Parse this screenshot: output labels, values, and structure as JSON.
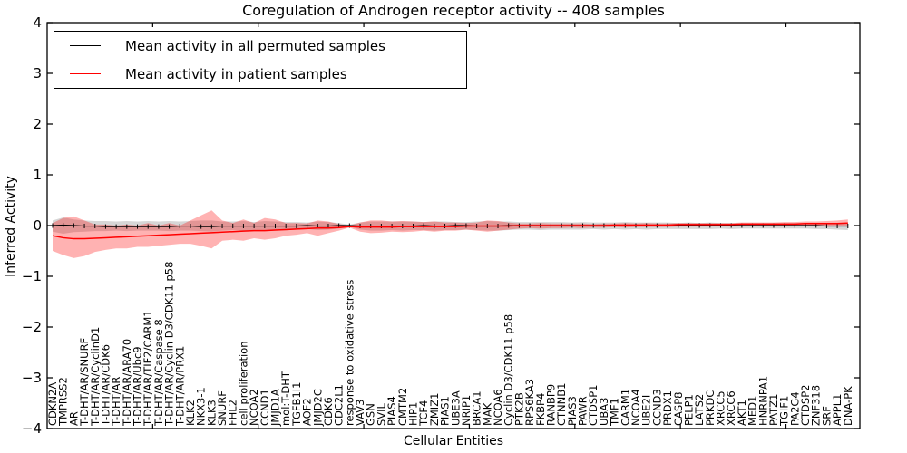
{
  "title": "Coregulation of Androgen receptor activity -- 408 samples",
  "legend": {
    "entries": [
      {
        "label": "Mean activity in all permuted samples",
        "color": "#000000"
      },
      {
        "label": "Mean activity in patient samples",
        "color": "#ff0000"
      }
    ]
  },
  "axes": {
    "xlabel": "Cellular Entities",
    "ylabel": "Inferred Activity",
    "ylim": [
      -4,
      4
    ],
    "ytick_values": [
      4,
      3,
      2,
      1,
      0,
      -1,
      -2,
      -3,
      -4
    ],
    "ytick_labels": [
      "4",
      "3",
      "2",
      "1",
      "0",
      "−1",
      "−2",
      "−3",
      "−4"
    ]
  },
  "colors": {
    "line_permuted": "#000000",
    "line_patient": "#ff0000",
    "band_permuted": "rgba(0,0,0,0.16)",
    "band_patient": "rgba(255,0,0,0.30)",
    "frame": "#000000",
    "background": "#ffffff"
  },
  "chart_data": {
    "type": "line",
    "title": "Coregulation of Androgen receptor activity -- 408 samples",
    "xlabel": "Cellular Entities",
    "ylabel": "Inferred Activity",
    "ylim": [
      -4,
      4
    ],
    "grid": false,
    "legend_position": "upper left",
    "categories": [
      "CDKN2A",
      "TMPRSS2",
      "AR",
      "T-DHT/AR/SNURF",
      "T-DHT/AR/CyclinD1",
      "T-DHT/AR/CDK6",
      "T-DHT/AR",
      "T-DHT/AR/ARA70",
      "T-DHT/AR/Ubc9",
      "T-DHT/AR/TIF2/CARM1",
      "T-DHT/AR/Caspase 8",
      "T-DHT/AR/Cyclin D3/CDK11 p58",
      "T-DHT/AR/PRX1",
      "KLK2",
      "NKX3-1",
      "KLK3",
      "SNURF",
      "FHL2",
      "cell proliferation",
      "NCOA2",
      "CCND1",
      "JMJD1A",
      "mol:T-DHT",
      "TGFB1I1",
      "AOF2",
      "JMJD2C",
      "CDK6",
      "CDC2L1",
      "response to oxidative stress",
      "VAV3",
      "GSN",
      "SVIL",
      "PIAS4",
      "CMTM2",
      "HIP1",
      "TCF4",
      "ZMIZ1",
      "PIAS1",
      "UBE3A",
      "NRIP1",
      "BRCA1",
      "MAK",
      "NCOA6",
      "Cyclin D3/CDK11 p58",
      "PTK2B",
      "RPS6KA3",
      "FKBP4",
      "RANBP9",
      "CTNNB1",
      "PIAS3",
      "PAWR",
      "CTDSP1",
      "UBA3",
      "TMF1",
      "CARM1",
      "NCOA4",
      "UBE2I",
      "CCND3",
      "PRDX1",
      "CASP8",
      "PELP1",
      "LATS2",
      "PRKDC",
      "XRCC5",
      "XRCC6",
      "AKT1",
      "MED1",
      "HNRNPA1",
      "PATZ1",
      "TGIF1",
      "PA2G4",
      "CTDSP2",
      "ZNF318",
      "SRF",
      "APPL1",
      "DNA-PK"
    ],
    "series": [
      {
        "name": "Mean activity in all permuted samples",
        "color": "#000000",
        "marker": "tick",
        "values": [
          0.0,
          0.01,
          0.0,
          -0.01,
          -0.01,
          -0.02,
          -0.02,
          -0.02,
          -0.02,
          -0.02,
          -0.02,
          -0.02,
          -0.01,
          -0.01,
          -0.02,
          -0.02,
          -0.01,
          -0.01,
          -0.01,
          -0.01,
          -0.01,
          -0.01,
          -0.01,
          -0.01,
          0.0,
          -0.01,
          -0.01,
          0.0,
          0.0,
          -0.01,
          -0.01,
          -0.01,
          -0.01,
          -0.01,
          -0.01,
          0.0,
          -0.01,
          -0.01,
          0.0,
          0.0,
          -0.01,
          -0.01,
          -0.01,
          0.0,
          0.0,
          0.0,
          0.0,
          0.0,
          0.0,
          0.0,
          0.0,
          0.0,
          0.0,
          0.0,
          0.0,
          0.0,
          0.0,
          0.0,
          0.0,
          0.0,
          0.0,
          0.0,
          0.0,
          0.0,
          0.0,
          0.0,
          0.0,
          0.0,
          0.0,
          0.0,
          0.0,
          0.0,
          0.0,
          -0.01,
          -0.01,
          -0.01
        ]
      },
      {
        "name": "Mean activity in patient samples",
        "color": "#ff0000",
        "marker": "none",
        "values": [
          -0.2,
          -0.24,
          -0.26,
          -0.26,
          -0.25,
          -0.24,
          -0.23,
          -0.22,
          -0.21,
          -0.2,
          -0.19,
          -0.18,
          -0.17,
          -0.16,
          -0.15,
          -0.14,
          -0.13,
          -0.12,
          -0.11,
          -0.1,
          -0.1,
          -0.09,
          -0.08,
          -0.07,
          -0.06,
          -0.05,
          -0.05,
          -0.04,
          -0.02,
          -0.03,
          -0.03,
          -0.03,
          -0.03,
          -0.02,
          -0.02,
          -0.02,
          -0.02,
          -0.02,
          -0.02,
          -0.01,
          -0.01,
          -0.01,
          -0.01,
          -0.01,
          0.0,
          0.0,
          0.0,
          0.0,
          0.0,
          0.0,
          0.0,
          0.0,
          0.0,
          0.01,
          0.01,
          0.01,
          0.01,
          0.01,
          0.01,
          0.02,
          0.02,
          0.02,
          0.02,
          0.02,
          0.02,
          0.03,
          0.03,
          0.03,
          0.03,
          0.03,
          0.03,
          0.04,
          0.04,
          0.04,
          0.04,
          0.05
        ]
      }
    ],
    "bands": [
      {
        "name": "permuted samples spread",
        "color": "rgba(0,0,0,0.16)",
        "lower": [
          -0.12,
          -0.16,
          -0.13,
          -0.12,
          -0.11,
          -0.11,
          -0.1,
          -0.11,
          -0.1,
          -0.1,
          -0.1,
          -0.11,
          -0.1,
          -0.1,
          -0.11,
          -0.12,
          -0.1,
          -0.09,
          -0.1,
          -0.09,
          -0.1,
          -0.09,
          -0.08,
          -0.08,
          -0.07,
          -0.09,
          -0.08,
          -0.06,
          -0.02,
          -0.08,
          -0.1,
          -0.1,
          -0.09,
          -0.1,
          -0.09,
          -0.09,
          -0.1,
          -0.09,
          -0.09,
          -0.08,
          -0.09,
          -0.1,
          -0.1,
          -0.09,
          -0.08,
          -0.08,
          -0.09,
          -0.08,
          -0.08,
          -0.08,
          -0.08,
          -0.07,
          -0.08,
          -0.07,
          -0.08,
          -0.07,
          -0.08,
          -0.07,
          -0.07,
          -0.07,
          -0.07,
          -0.07,
          -0.07,
          -0.06,
          -0.07,
          -0.06,
          -0.06,
          -0.06,
          -0.06,
          -0.06,
          -0.06,
          -0.06,
          -0.07,
          -0.07,
          -0.08,
          -0.09
        ],
        "upper": [
          0.1,
          0.16,
          0.12,
          0.1,
          0.09,
          0.09,
          0.08,
          0.09,
          0.08,
          0.09,
          0.08,
          0.09,
          0.08,
          0.09,
          0.1,
          0.1,
          0.08,
          0.08,
          0.09,
          0.07,
          0.09,
          0.08,
          0.07,
          0.07,
          0.06,
          0.08,
          0.07,
          0.05,
          0.02,
          0.06,
          0.08,
          0.08,
          0.08,
          0.08,
          0.08,
          0.07,
          0.08,
          0.08,
          0.07,
          0.07,
          0.08,
          0.09,
          0.08,
          0.08,
          0.07,
          0.07,
          0.07,
          0.07,
          0.07,
          0.06,
          0.07,
          0.06,
          0.06,
          0.06,
          0.07,
          0.06,
          0.06,
          0.06,
          0.06,
          0.05,
          0.06,
          0.05,
          0.06,
          0.05,
          0.05,
          0.05,
          0.05,
          0.05,
          0.05,
          0.05,
          0.05,
          0.05,
          0.05,
          0.05,
          0.05,
          0.06
        ]
      },
      {
        "name": "patient samples spread",
        "color": "rgba(255,0,0,0.30)",
        "lower": [
          -0.5,
          -0.58,
          -0.64,
          -0.6,
          -0.52,
          -0.48,
          -0.45,
          -0.45,
          -0.42,
          -0.42,
          -0.4,
          -0.38,
          -0.36,
          -0.36,
          -0.4,
          -0.45,
          -0.3,
          -0.28,
          -0.3,
          -0.25,
          -0.28,
          -0.25,
          -0.2,
          -0.18,
          -0.15,
          -0.2,
          -0.15,
          -0.1,
          -0.04,
          -0.12,
          -0.15,
          -0.14,
          -0.12,
          -0.13,
          -0.12,
          -0.1,
          -0.12,
          -0.1,
          -0.1,
          -0.08,
          -0.1,
          -0.12,
          -0.1,
          -0.08,
          -0.06,
          -0.05,
          -0.06,
          -0.05,
          -0.05,
          -0.04,
          -0.05,
          -0.04,
          -0.04,
          -0.03,
          -0.04,
          -0.03,
          -0.03,
          -0.03,
          -0.03,
          -0.02,
          -0.02,
          -0.02,
          -0.02,
          -0.01,
          -0.01,
          0.0,
          0.0,
          0.0,
          0.0,
          0.0,
          0.0,
          0.01,
          0.01,
          0.0,
          0.0,
          -0.02
        ],
        "upper": [
          0.05,
          0.15,
          0.18,
          0.1,
          0.02,
          0.02,
          0.0,
          0.02,
          0.0,
          0.05,
          0.0,
          0.05,
          0.0,
          0.1,
          0.2,
          0.3,
          0.1,
          0.05,
          0.12,
          0.05,
          0.15,
          0.12,
          0.05,
          0.05,
          0.04,
          0.1,
          0.08,
          0.03,
          0.0,
          0.06,
          0.1,
          0.1,
          0.08,
          0.09,
          0.08,
          0.07,
          0.08,
          0.06,
          0.06,
          0.05,
          0.06,
          0.1,
          0.09,
          0.06,
          0.04,
          0.04,
          0.05,
          0.04,
          0.04,
          0.04,
          0.04,
          0.03,
          0.04,
          0.04,
          0.05,
          0.04,
          0.05,
          0.04,
          0.04,
          0.05,
          0.05,
          0.05,
          0.05,
          0.05,
          0.05,
          0.06,
          0.06,
          0.06,
          0.06,
          0.07,
          0.07,
          0.08,
          0.08,
          0.09,
          0.1,
          0.12
        ]
      }
    ]
  }
}
